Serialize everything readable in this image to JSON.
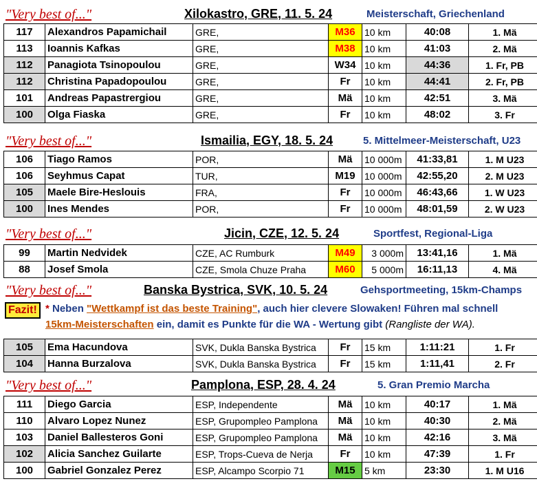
{
  "heading_prefix": "\"Very best of...\"",
  "fazit": {
    "label": "Fazit!",
    "star": "*",
    "text1": " Neben ",
    "quote": "\"Wettkampf ist das beste Training\"",
    "text2": ", auch hier clevere Slowaken! Führen mal schnell",
    "link": "15km-Meisterschaften",
    "text3": " ein, damit es Punkte für die WA - Wertung gibt ",
    "note": "(Rangliste der WA)."
  },
  "sections": [
    {
      "place": "Xilokastro, GRE, 11. 5. 24",
      "event": "Meisterschaft, Griechenland",
      "rows": [
        {
          "pts": "117",
          "name": "Alexandros Papamichail",
          "nat": "GRE,",
          "cat": "M36",
          "dist": "10 km",
          "time": "40:08",
          "place": "1. Mä"
        },
        {
          "pts": "113",
          "name": "Ioannis Kafkas",
          "nat": "GRE,",
          "cat": "M38",
          "dist": "10 km",
          "time": "41:03",
          "place": "2. Mä"
        },
        {
          "pts": "112",
          "name": "Panagiota Tsinopoulou",
          "nat": "GRE,",
          "cat": "W34",
          "dist": "10 km",
          "time": "44:36",
          "place": "1. Fr, PB"
        },
        {
          "pts": "112",
          "name": "Christina Papadopoulou",
          "nat": "GRE,",
          "cat": "Fr",
          "dist": "10 km",
          "time": "44:41",
          "place": "2. Fr, PB"
        },
        {
          "pts": "101",
          "name": "Andreas Papastrergiou",
          "nat": "GRE,",
          "cat": "Mä",
          "dist": "10 km",
          "time": "42:51",
          "place": "3. Mä"
        },
        {
          "pts": "100",
          "name": "Olga Fiaska",
          "nat": "GRE,",
          "cat": "Fr",
          "dist": "10 km",
          "time": "48:02",
          "place": "3. Fr"
        }
      ]
    },
    {
      "place": "Ismailia, EGY, 18. 5. 24",
      "event": "5. Mittelmeer-Meisterschaft, U23",
      "rows": [
        {
          "pts": "106",
          "name": "Tiago Ramos",
          "nat": "POR,",
          "cat": "Mä",
          "dist": "10 000m",
          "time": "41:33,81",
          "place": "1. M U23"
        },
        {
          "pts": "106",
          "name": "Seyhmus Capat",
          "nat": "TUR,",
          "cat": "M19",
          "dist": "10 000m",
          "time": "42:55,20",
          "place": "2. M U23"
        },
        {
          "pts": "105",
          "name": "Maele Bire-Heslouis",
          "nat": "FRA,",
          "cat": "Fr",
          "dist": "10 000m",
          "time": "46:43,66",
          "place": "1. W U23"
        },
        {
          "pts": "100",
          "name": "Ines Mendes",
          "nat": "POR,",
          "cat": "Fr",
          "dist": "10 000m",
          "time": "48:01,59",
          "place": "2. W U23"
        }
      ]
    },
    {
      "place": "Jicin, CZE, 12. 5. 24",
      "event": "Sportfest, Regional-Liga",
      "rows": [
        {
          "pts": "99",
          "name": "Martin Nedvidek",
          "nat": "CZE, AC Rumburk",
          "cat": "M49",
          "dist": "3 000m",
          "time": "13:41,16",
          "place": "1. Mä"
        },
        {
          "pts": "88",
          "name": "Josef Smola",
          "nat": "CZE, Smola Chuze Praha",
          "cat": "M60",
          "dist": "5 000m",
          "time": "16:11,13",
          "place": "4. Mä"
        }
      ]
    },
    {
      "place": "Banska Bystrica, SVK, 10. 5. 24",
      "event": "Gehsportmeeting, 15km-Champs",
      "rows": [
        {
          "pts": "105",
          "name": "Ema Hacundova",
          "nat": "SVK, Dukla Banska Bystrica",
          "cat": "Fr",
          "dist": "15 km",
          "time": "1:11:21",
          "place": "1. Fr"
        },
        {
          "pts": "104",
          "name": "Hanna Burzalova",
          "nat": "SVK, Dukla Banska Bystrica",
          "cat": "Fr",
          "dist": "15 km",
          "time": "1:11,41",
          "place": "2. Fr"
        }
      ]
    },
    {
      "place": "Pamplona, ESP, 28. 4. 24",
      "event": "5. Gran Premio Marcha",
      "rows": [
        {
          "pts": "111",
          "name": "Diego Garcia",
          "nat": "ESP, Independente",
          "cat": "Mä",
          "dist": "10 km",
          "time": "40:17",
          "place": "1. Mä"
        },
        {
          "pts": "110",
          "name": "Alvaro Lopez Nunez",
          "nat": "ESP, Grupompleo Pamplona",
          "cat": "Mä",
          "dist": "10 km",
          "time": "40:30",
          "place": "2. Mä"
        },
        {
          "pts": "103",
          "name": "Daniel Ballesteros Goni",
          "nat": "ESP, Grupompleo Pamplona",
          "cat": "Mä",
          "dist": "10 km",
          "time": "42:16",
          "place": "3. Mä"
        },
        {
          "pts": "102",
          "name": "Alicia Sanchez Guilarte",
          "nat": "ESP, Trops-Cueva de Nerja",
          "cat": "Fr",
          "dist": "10 km",
          "time": "47:39",
          "place": "1. Fr"
        },
        {
          "pts": "100",
          "name": "Gabriel Gonzalez Perez",
          "nat": "ESP, Alcampo Scorpio 71",
          "cat": "M15",
          "dist": "5 km",
          "time": "23:30",
          "place": "1. M U16"
        }
      ]
    }
  ]
}
